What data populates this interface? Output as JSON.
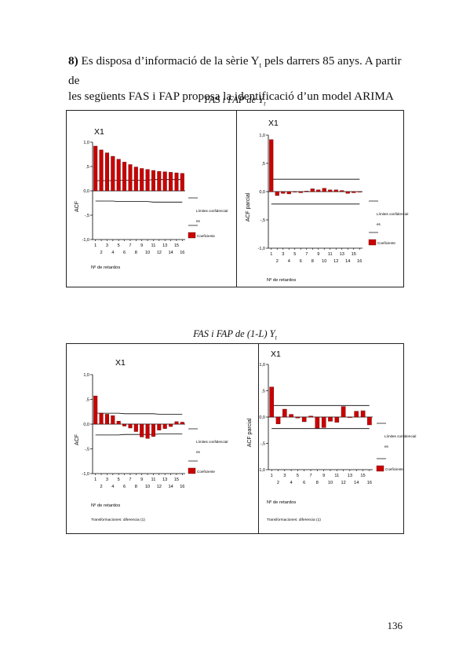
{
  "question": {
    "number": "8)",
    "line1": " Es disposa d’informació de la sèrie Y",
    "line1_sub": "t",
    "line1_rest": " pels darrers 85 anys. A partir de",
    "line2": "les següents FAS i FAP proposa la identificació d’un model ARIMA"
  },
  "caption1": {
    "text": "FAS i FAP de Y",
    "sub": "t"
  },
  "caption2": {
    "text": "FAS i FAP de (1-L) Y",
    "sub": "t"
  },
  "page_number": "136",
  "chart_data": [
    {
      "type": "bar",
      "title": "X1",
      "ylabel": "ACF",
      "xlabel": "Nº de retardos",
      "note": "",
      "ylim": [
        -1,
        1
      ],
      "yticks": [
        "1,0",
        ",5",
        "0,0",
        "-,5",
        "-1,0"
      ],
      "ytick_values": [
        1,
        0.5,
        0,
        -0.5,
        -1
      ],
      "xticks_odd": [
        "1",
        "3",
        "5",
        "7",
        "9",
        "11",
        "13",
        "15"
      ],
      "xticks_even": [
        "2",
        "4",
        "6",
        "8",
        "10",
        "12",
        "14",
        "16"
      ],
      "lags": [
        1,
        2,
        3,
        4,
        5,
        6,
        7,
        8,
        9,
        10,
        11,
        12,
        13,
        14,
        15,
        16
      ],
      "values": [
        0.92,
        0.84,
        0.78,
        0.71,
        0.65,
        0.59,
        0.54,
        0.49,
        0.46,
        0.44,
        0.42,
        0.4,
        0.39,
        0.38,
        0.37,
        0.36
      ],
      "upper_limit": [
        0.21,
        0.21,
        0.21,
        0.21,
        0.22,
        0.22,
        0.22,
        0.22,
        0.22,
        0.22,
        0.23,
        0.23,
        0.23,
        0.23,
        0.23,
        0.23
      ],
      "lower_limit": [
        -0.21,
        -0.21,
        -0.21,
        -0.21,
        -0.22,
        -0.22,
        -0.22,
        -0.22,
        -0.22,
        -0.22,
        -0.23,
        -0.23,
        -0.23,
        -0.23,
        -0.23,
        -0.23
      ],
      "legend": {
        "limits_line1": "Límites confidencial",
        "limits_line2": "es",
        "coef": "Coeficiente"
      }
    },
    {
      "type": "bar",
      "title": "X1",
      "ylabel": "ACF parcial",
      "xlabel": "Nº de retardos",
      "note": "",
      "ylim": [
        -1,
        1
      ],
      "yticks": [
        "1,0",
        ",5",
        "0,0",
        "-,5",
        "-1,0"
      ],
      "ytick_values": [
        1,
        0.5,
        0,
        -0.5,
        -1
      ],
      "xticks_odd": [
        "1",
        "3",
        "5",
        "7",
        "9",
        "11",
        "13",
        "15"
      ],
      "xticks_even": [
        "2",
        "4",
        "6",
        "8",
        "10",
        "12",
        "14",
        "16"
      ],
      "lags": [
        1,
        2,
        3,
        4,
        5,
        6,
        7,
        8,
        9,
        10,
        11,
        12,
        13,
        14,
        15,
        16
      ],
      "values": [
        0.92,
        -0.07,
        -0.03,
        -0.04,
        0.0,
        -0.02,
        0.01,
        0.05,
        0.03,
        0.06,
        0.03,
        0.03,
        0.02,
        -0.03,
        -0.02,
        0.0
      ],
      "upper_limit": [
        0.22,
        0.22,
        0.22,
        0.22,
        0.22,
        0.22,
        0.22,
        0.22,
        0.22,
        0.22,
        0.22,
        0.22,
        0.22,
        0.22,
        0.22,
        0.22
      ],
      "lower_limit": [
        -0.22,
        -0.22,
        -0.22,
        -0.22,
        -0.22,
        -0.22,
        -0.22,
        -0.22,
        -0.22,
        -0.22,
        -0.22,
        -0.22,
        -0.22,
        -0.22,
        -0.22,
        -0.22
      ],
      "legend": {
        "limits_line1": "Límites confidencial",
        "limits_line2": "es",
        "coef": "Coeficiente"
      }
    },
    {
      "type": "bar",
      "title": "X1",
      "ylabel": "ACF",
      "xlabel": "Nº de retardos",
      "note": "Transformaciones: diferencia (1)",
      "ylim": [
        -1,
        1
      ],
      "yticks": [
        "1,0",
        ",5",
        "0,0",
        "-,5",
        "-1,0"
      ],
      "ytick_values": [
        1,
        0.5,
        0,
        -0.5,
        -1
      ],
      "xticks_odd": [
        "1",
        "3",
        "5",
        "7",
        "9",
        "11",
        "13",
        "15"
      ],
      "xticks_even": [
        "2",
        "4",
        "6",
        "8",
        "10",
        "12",
        "14",
        "16"
      ],
      "lags": [
        1,
        2,
        3,
        4,
        5,
        6,
        7,
        8,
        9,
        10,
        11,
        12,
        13,
        14,
        15,
        16
      ],
      "values": [
        0.57,
        0.22,
        0.2,
        0.17,
        0.06,
        -0.04,
        -0.08,
        -0.15,
        -0.26,
        -0.29,
        -0.25,
        -0.12,
        -0.09,
        -0.05,
        0.05,
        0.04
      ],
      "upper_limit": [
        0.22,
        0.22,
        0.22,
        0.22,
        0.22,
        0.21,
        0.21,
        0.21,
        0.21,
        0.21,
        0.21,
        0.2,
        0.2,
        0.2,
        0.2,
        0.2
      ],
      "lower_limit": [
        -0.22,
        -0.22,
        -0.22,
        -0.22,
        -0.22,
        -0.21,
        -0.21,
        -0.21,
        -0.21,
        -0.21,
        -0.21,
        -0.2,
        -0.2,
        -0.2,
        -0.2,
        -0.2
      ],
      "legend": {
        "limits_line1": "Límites confidencial",
        "limits_line2": "es",
        "coef": "Coeficiente"
      }
    },
    {
      "type": "bar",
      "title": "X1",
      "ylabel": "ACF parcial",
      "xlabel": "Nº de retardos",
      "note": "Transformaciones: diferencia (1)",
      "ylim": [
        -1,
        1
      ],
      "yticks": [
        "1,0",
        ",5",
        "0,0",
        "-,5",
        "-1,0"
      ],
      "ytick_values": [
        1,
        0.5,
        0,
        -0.5,
        -1
      ],
      "xticks_odd": [
        "1",
        "3",
        "5",
        "7",
        "9",
        "11",
        "13",
        "15"
      ],
      "xticks_even": [
        "2",
        "4",
        "6",
        "8",
        "10",
        "12",
        "14",
        "16"
      ],
      "lags": [
        1,
        2,
        3,
        4,
        5,
        6,
        7,
        8,
        9,
        10,
        11,
        12,
        13,
        14,
        15,
        16
      ],
      "values": [
        0.57,
        -0.13,
        0.15,
        0.05,
        -0.02,
        -0.09,
        0.02,
        -0.21,
        -0.2,
        -0.08,
        -0.1,
        0.2,
        -0.01,
        0.11,
        0.12,
        -0.15
      ],
      "upper_limit": [
        0.22,
        0.22,
        0.22,
        0.22,
        0.22,
        0.22,
        0.22,
        0.22,
        0.22,
        0.22,
        0.22,
        0.22,
        0.22,
        0.22,
        0.22,
        0.22
      ],
      "lower_limit": [
        -0.22,
        -0.22,
        -0.22,
        -0.22,
        -0.22,
        -0.22,
        -0.22,
        -0.22,
        -0.22,
        -0.22,
        -0.22,
        -0.22,
        -0.22,
        -0.22,
        -0.22,
        -0.22
      ],
      "legend": {
        "limits_line1": "Límites confidencial",
        "limits_line2": "es",
        "coef": "Coeficiente"
      }
    }
  ],
  "colors": {
    "bar": "#cc0000",
    "bar_edge": "#5a0000",
    "axis": "#000000",
    "text": "#111111"
  }
}
